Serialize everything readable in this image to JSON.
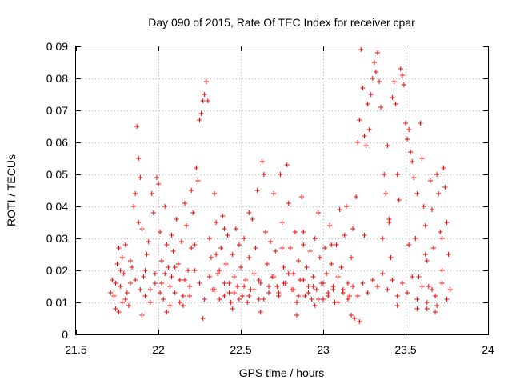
{
  "chart_data": {
    "type": "scatter",
    "title": "Day 090 of 2015, Rate Of TEC Index for receiver cpar",
    "xlabel": "GPS time / hours",
    "ylabel": "ROTI / TECUs",
    "xlim": [
      21.5,
      24
    ],
    "ylim": [
      0,
      0.09
    ],
    "x_ticks": [
      21.5,
      22,
      22.5,
      23,
      23.5,
      24
    ],
    "x_tick_labels": [
      "21.5",
      "22",
      "22.5",
      "23",
      "23.5",
      "24"
    ],
    "y_ticks": [
      0,
      0.01,
      0.02,
      0.03,
      0.04,
      0.05,
      0.06,
      0.07,
      0.08,
      0.09
    ],
    "y_tick_labels": [
      "0",
      "0.01",
      "0.02",
      "0.03",
      "0.04",
      "0.05",
      "0.06",
      "0.07",
      "0.08",
      "0.09"
    ],
    "grid": true,
    "marker": "+",
    "color": "#ff0000",
    "series": [
      {
        "name": "ROTI",
        "points": [
          [
            21.72,
            0.017
          ],
          [
            21.73,
            0.012
          ],
          [
            21.74,
            0.008
          ],
          [
            21.75,
            0.022
          ],
          [
            21.76,
            0.027
          ],
          [
            21.77,
            0.015
          ],
          [
            21.78,
            0.01
          ],
          [
            21.79,
            0.019
          ],
          [
            21.8,
            0.028
          ],
          [
            21.81,
            0.013
          ],
          [
            21.82,
            0.009
          ],
          [
            21.83,
            0.016
          ],
          [
            21.84,
            0.021
          ],
          [
            21.85,
            0.04
          ],
          [
            21.86,
            0.044
          ],
          [
            21.87,
            0.065
          ],
          [
            21.88,
            0.055
          ],
          [
            21.89,
            0.049
          ],
          [
            21.9,
            0.033
          ],
          [
            21.91,
            0.018
          ],
          [
            21.92,
            0.012
          ],
          [
            21.93,
            0.025
          ],
          [
            21.94,
            0.029
          ],
          [
            21.95,
            0.014
          ],
          [
            21.96,
            0.044
          ],
          [
            21.97,
            0.038
          ],
          [
            21.98,
            0.019
          ],
          [
            21.99,
            0.049
          ],
          [
            22.0,
            0.047
          ],
          [
            22.01,
            0.032
          ],
          [
            22.02,
            0.016
          ],
          [
            22.03,
            0.011
          ],
          [
            22.04,
            0.04
          ],
          [
            22.05,
            0.028
          ],
          [
            22.06,
            0.021
          ],
          [
            22.07,
            0.009
          ],
          [
            22.08,
            0.018
          ],
          [
            22.09,
            0.026
          ],
          [
            22.1,
            0.013
          ],
          [
            22.11,
            0.036
          ],
          [
            22.12,
            0.022
          ],
          [
            22.13,
            0.017
          ],
          [
            22.14,
            0.029
          ],
          [
            22.15,
            0.012
          ],
          [
            22.16,
            0.041
          ],
          [
            22.17,
            0.034
          ],
          [
            22.18,
            0.02
          ],
          [
            22.19,
            0.015
          ],
          [
            22.2,
            0.045
          ],
          [
            22.21,
            0.038
          ],
          [
            22.22,
            0.028
          ],
          [
            22.23,
            0.052
          ],
          [
            22.24,
            0.048
          ],
          [
            22.25,
            0.067
          ],
          [
            22.26,
            0.069
          ],
          [
            22.27,
            0.073
          ],
          [
            22.28,
            0.075
          ],
          [
            22.29,
            0.079
          ],
          [
            22.3,
            0.073
          ],
          [
            22.31,
            0.03
          ],
          [
            22.32,
            0.024
          ],
          [
            22.33,
            0.014
          ],
          [
            22.34,
            0.044
          ],
          [
            22.35,
            0.035
          ],
          [
            22.36,
            0.019
          ],
          [
            22.37,
            0.011
          ],
          [
            22.38,
            0.027
          ],
          [
            22.39,
            0.037
          ],
          [
            22.4,
            0.016
          ],
          [
            22.41,
            0.022
          ],
          [
            22.42,
            0.031
          ],
          [
            22.43,
            0.013
          ],
          [
            22.44,
            0.01
          ],
          [
            22.45,
            0.025
          ],
          [
            22.46,
            0.018
          ],
          [
            22.47,
            0.033
          ],
          [
            22.48,
            0.015
          ],
          [
            22.49,
            0.028
          ],
          [
            22.5,
            0.021
          ],
          [
            22.51,
            0.012
          ],
          [
            22.52,
            0.03
          ],
          [
            22.53,
            0.017
          ],
          [
            22.54,
            0.01
          ],
          [
            22.55,
            0.024
          ],
          [
            22.56,
            0.014
          ],
          [
            22.57,
            0.036
          ],
          [
            22.58,
            0.019
          ],
          [
            22.59,
            0.027
          ],
          [
            22.6,
            0.045
          ],
          [
            22.61,
            0.011
          ],
          [
            22.62,
            0.016
          ],
          [
            22.63,
            0.054
          ],
          [
            22.64,
            0.05
          ],
          [
            22.65,
            0.032
          ],
          [
            22.66,
            0.022
          ],
          [
            22.67,
            0.013
          ],
          [
            22.68,
            0.029
          ],
          [
            22.69,
            0.018
          ],
          [
            22.7,
            0.044
          ],
          [
            22.71,
            0.026
          ],
          [
            22.72,
            0.015
          ],
          [
            22.73,
            0.012
          ],
          [
            22.74,
            0.05
          ],
          [
            22.75,
            0.035
          ],
          [
            22.76,
            0.021
          ],
          [
            22.77,
            0.016
          ],
          [
            22.78,
            0.053
          ],
          [
            22.79,
            0.041
          ],
          [
            22.8,
            0.027
          ],
          [
            22.81,
            0.014
          ],
          [
            22.82,
            0.019
          ],
          [
            22.83,
            0.032
          ],
          [
            22.84,
            0.01
          ],
          [
            22.85,
            0.023
          ],
          [
            22.86,
            0.017
          ],
          [
            22.87,
            0.043
          ],
          [
            22.88,
            0.028
          ],
          [
            22.89,
            0.012
          ],
          [
            22.9,
            0.021
          ],
          [
            22.91,
            0.015
          ],
          [
            22.92,
            0.026
          ],
          [
            22.93,
            0.011
          ],
          [
            22.94,
            0.018
          ],
          [
            22.95,
            0.03
          ],
          [
            22.96,
            0.014
          ],
          [
            22.97,
            0.038
          ],
          [
            22.98,
            0.024
          ],
          [
            22.99,
            0.016
          ],
          [
            23.0,
            0.011
          ],
          [
            23.01,
            0.027
          ],
          [
            23.02,
            0.019
          ],
          [
            23.03,
            0.013
          ],
          [
            23.04,
            0.034
          ],
          [
            23.05,
            0.022
          ],
          [
            23.06,
            0.015
          ],
          [
            23.07,
            0.01
          ],
          [
            23.08,
            0.028
          ],
          [
            23.09,
            0.018
          ],
          [
            23.1,
            0.039
          ],
          [
            23.11,
            0.021
          ],
          [
            23.12,
            0.014
          ],
          [
            23.13,
            0.031
          ],
          [
            23.14,
            0.04
          ],
          [
            23.15,
            0.016
          ],
          [
            23.16,
            0.012
          ],
          [
            23.17,
            0.024
          ],
          [
            23.18,
            0.033
          ],
          [
            23.19,
            0.005
          ],
          [
            23.2,
            0.043
          ],
          [
            23.21,
            0.06
          ],
          [
            23.22,
            0.067
          ],
          [
            23.23,
            0.089
          ],
          [
            23.24,
            0.077
          ],
          [
            23.25,
            0.062
          ],
          [
            23.26,
            0.059
          ],
          [
            23.27,
            0.072
          ],
          [
            23.28,
            0.064
          ],
          [
            23.29,
            0.075
          ],
          [
            23.3,
            0.08
          ],
          [
            23.31,
            0.085
          ],
          [
            23.32,
            0.082
          ],
          [
            23.33,
            0.088
          ],
          [
            23.34,
            0.079
          ],
          [
            23.35,
            0.071
          ],
          [
            23.36,
            0.03
          ],
          [
            23.37,
            0.05
          ],
          [
            23.38,
            0.044
          ],
          [
            23.39,
            0.059
          ],
          [
            23.4,
            0.035
          ],
          [
            23.41,
            0.024
          ],
          [
            23.42,
            0.074
          ],
          [
            23.43,
            0.079
          ],
          [
            23.44,
            0.072
          ],
          [
            23.45,
            0.05
          ],
          [
            23.46,
            0.042
          ],
          [
            23.47,
            0.083
          ],
          [
            23.48,
            0.081
          ],
          [
            23.49,
            0.078
          ],
          [
            23.5,
            0.066
          ],
          [
            23.51,
            0.061
          ],
          [
            23.52,
            0.064
          ],
          [
            23.53,
            0.057
          ],
          [
            23.54,
            0.054
          ],
          [
            23.55,
            0.049
          ],
          [
            23.56,
            0.03
          ],
          [
            23.57,
            0.044
          ],
          [
            23.58,
            0.018
          ],
          [
            23.59,
            0.066
          ],
          [
            23.6,
            0.055
          ],
          [
            23.61,
            0.04
          ],
          [
            23.62,
            0.034
          ],
          [
            23.63,
            0.023
          ],
          [
            23.64,
            0.015
          ],
          [
            23.65,
            0.048
          ],
          [
            23.66,
            0.039
          ],
          [
            23.67,
            0.027
          ],
          [
            23.68,
            0.012
          ],
          [
            23.69,
            0.05
          ],
          [
            23.7,
            0.044
          ],
          [
            23.71,
            0.032
          ],
          [
            23.72,
            0.02
          ],
          [
            23.73,
            0.052
          ],
          [
            23.74,
            0.046
          ],
          [
            23.75,
            0.035
          ],
          [
            23.76,
            0.025
          ],
          [
            23.77,
            0.014
          ],
          [
            21.71,
            0.013
          ],
          [
            21.74,
            0.016
          ],
          [
            21.77,
            0.02
          ],
          [
            21.8,
            0.011
          ],
          [
            21.83,
            0.023
          ],
          [
            21.86,
            0.017
          ],
          [
            21.89,
            0.014
          ],
          [
            21.92,
            0.02
          ],
          [
            21.95,
            0.01
          ],
          [
            21.98,
            0.016
          ],
          [
            22.01,
            0.013
          ],
          [
            22.04,
            0.019
          ],
          [
            22.07,
            0.015
          ],
          [
            22.1,
            0.021
          ],
          [
            22.13,
            0.01
          ],
          [
            22.16,
            0.017
          ],
          [
            22.19,
            0.012
          ],
          [
            22.22,
            0.02
          ],
          [
            22.25,
            0.016
          ],
          [
            22.28,
            0.011
          ],
          [
            22.31,
            0.018
          ],
          [
            22.34,
            0.014
          ],
          [
            22.37,
            0.02
          ],
          [
            22.4,
            0.012
          ],
          [
            22.43,
            0.016
          ],
          [
            22.46,
            0.013
          ],
          [
            22.49,
            0.011
          ],
          [
            22.52,
            0.015
          ],
          [
            22.55,
            0.012
          ],
          [
            22.58,
            0.014
          ],
          [
            22.61,
            0.017
          ],
          [
            22.64,
            0.011
          ],
          [
            22.67,
            0.015
          ],
          [
            22.7,
            0.018
          ],
          [
            22.73,
            0.013
          ],
          [
            22.76,
            0.016
          ],
          [
            22.79,
            0.019
          ],
          [
            22.82,
            0.014
          ],
          [
            22.85,
            0.012
          ],
          [
            22.88,
            0.017
          ],
          [
            22.91,
            0.013
          ],
          [
            22.94,
            0.015
          ],
          [
            22.97,
            0.011
          ],
          [
            23.0,
            0.016
          ],
          [
            23.03,
            0.012
          ],
          [
            23.06,
            0.014
          ],
          [
            23.09,
            0.01
          ],
          [
            23.12,
            0.013
          ],
          [
            23.15,
            0.011
          ],
          [
            23.18,
            0.015
          ],
          [
            23.21,
            0.012
          ],
          [
            23.24,
            0.016
          ],
          [
            23.27,
            0.013
          ],
          [
            23.3,
            0.017
          ],
          [
            23.33,
            0.015
          ],
          [
            23.36,
            0.019
          ],
          [
            23.39,
            0.014
          ],
          [
            23.42,
            0.017
          ],
          [
            23.45,
            0.012
          ],
          [
            23.48,
            0.016
          ],
          [
            23.51,
            0.013
          ],
          [
            23.54,
            0.018
          ],
          [
            23.57,
            0.011
          ],
          [
            23.6,
            0.015
          ],
          [
            23.63,
            0.01
          ],
          [
            23.66,
            0.014
          ],
          [
            23.69,
            0.009
          ],
          [
            23.72,
            0.016
          ],
          [
            23.75,
            0.011
          ],
          [
            21.76,
            0.007
          ],
          [
            21.9,
            0.006
          ],
          [
            22.05,
            0.007
          ],
          [
            22.27,
            0.005
          ],
          [
            22.62,
            0.007
          ],
          [
            22.84,
            0.006
          ],
          [
            23.17,
            0.006
          ],
          [
            23.22,
            0.004
          ],
          [
            23.57,
            0.008
          ],
          [
            23.68,
            0.007
          ],
          [
            22.15,
            0.009
          ],
          [
            22.45,
            0.008
          ],
          [
            22.95,
            0.009
          ],
          [
            23.45,
            0.009
          ],
          [
            23.63,
            0.008
          ],
          [
            21.88,
            0.035
          ],
          [
            22.08,
            0.031
          ],
          [
            22.2,
            0.027
          ],
          [
            22.4,
            0.033
          ],
          [
            22.55,
            0.038
          ],
          [
            22.75,
            0.027
          ],
          [
            22.88,
            0.032
          ],
          [
            23.05,
            0.028
          ],
          [
            23.25,
            0.031
          ],
          [
            23.4,
            0.036
          ],
          [
            23.52,
            0.028
          ],
          [
            23.62,
            0.025
          ],
          [
            23.72,
            0.03
          ],
          [
            21.78,
            0.024
          ],
          [
            22.02,
            0.023
          ],
          [
            22.35,
            0.025
          ]
        ]
      }
    ]
  }
}
